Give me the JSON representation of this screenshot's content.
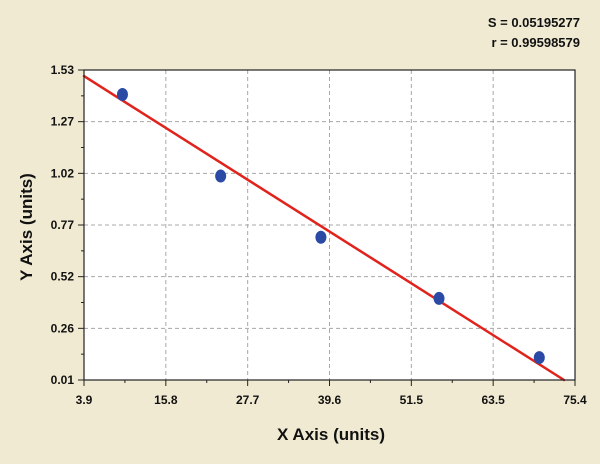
{
  "stats": {
    "s_text": "S = 0.05195277",
    "r_text": "r = 0.99598579"
  },
  "chart_data": {
    "type": "scatter",
    "title": "",
    "xlabel": "X Axis (units)",
    "ylabel": "Y Axis (units)",
    "xlim": [
      3.9,
      75.4
    ],
    "ylim": [
      0.01,
      1.53
    ],
    "x_ticks": [
      "3.9",
      "15.8",
      "27.7",
      "39.6",
      "51.5",
      "63.5",
      "75.4"
    ],
    "y_ticks": [
      "1.53",
      "1.27",
      "1.02",
      "0.77",
      "0.52",
      "0.26",
      "0.01"
    ],
    "grid": true,
    "points": [
      {
        "x": 9.5,
        "y": 1.41
      },
      {
        "x": 23.8,
        "y": 1.01
      },
      {
        "x": 38.4,
        "y": 0.71
      },
      {
        "x": 55.6,
        "y": 0.41
      },
      {
        "x": 70.2,
        "y": 0.12
      }
    ],
    "fit_line": {
      "x": [
        3.9,
        73.8
      ],
      "y": [
        1.5,
        0.01
      ]
    },
    "colors": {
      "background": "#f0ead2",
      "plot_background": "#ffffff",
      "points": "#2b4aa6",
      "fit_line": "#e0231c",
      "grid": "#a8a8a8"
    }
  }
}
